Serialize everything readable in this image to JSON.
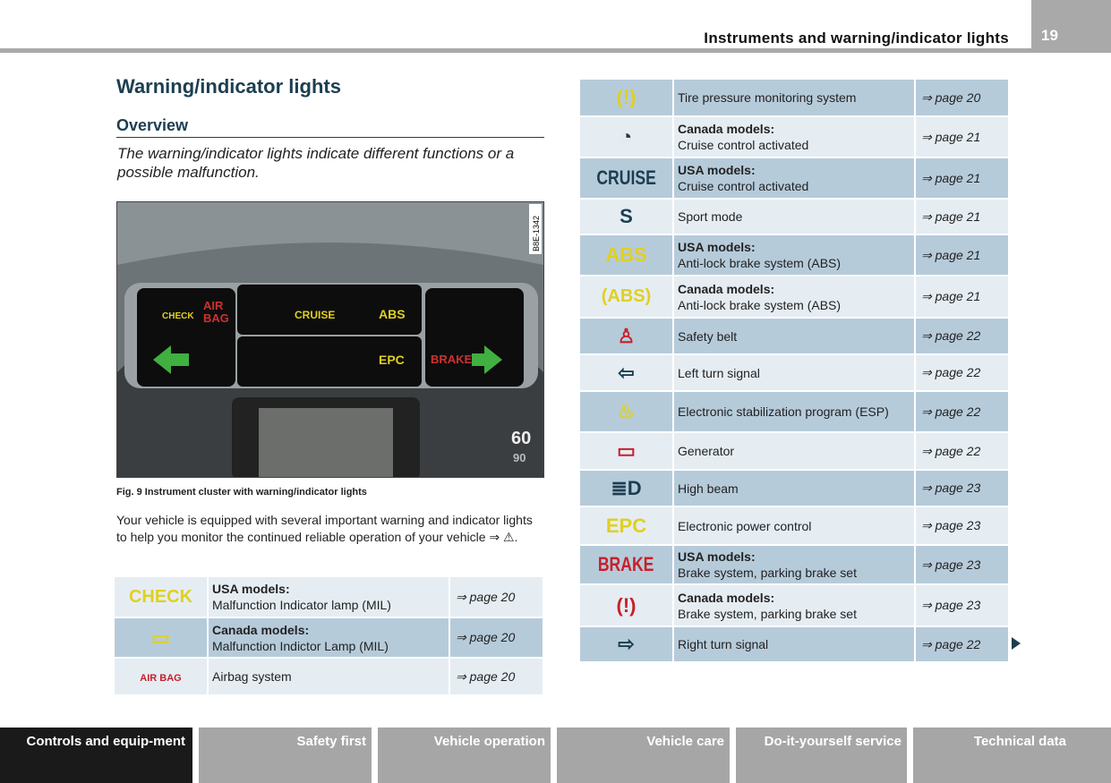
{
  "header": {
    "section_title": "Instruments and warning/indicator lights",
    "page_number": "19"
  },
  "title": "Warning/indicator lights",
  "subtitle": "Overview",
  "intro": "The warning/indicator lights indicate different functions or a possible malfunction.",
  "figure": {
    "code": "B8E-1342",
    "caption": "Fig. 9  Instrument cluster with warning/indicator lights",
    "labels": {
      "air": "AIR",
      "bag": "BAG",
      "check": "CHECK",
      "cruise": "CRUISE",
      "abs": "ABS",
      "epc": "EPC",
      "brake": "BRAKE",
      "s60": "60",
      "s90": "90"
    }
  },
  "body_text": "Your vehicle is equipped with several important warning and indicator lights to help you monitor the continued reliable operation of your vehicle ⇒ ⚠.",
  "left_table": [
    {
      "icon": "check-engine-icon",
      "glyph": "CHECK",
      "color": "#e0d020",
      "head": "USA models:",
      "text": "Malfunction Indicator lamp (MIL)",
      "page": "⇒ page 20"
    },
    {
      "icon": "engine-icon",
      "glyph": "▭",
      "color": "#e0d020",
      "head": "Canada models:",
      "text": "Malfunction Indictor Lamp (MIL)",
      "page": "⇒ page 20"
    },
    {
      "icon": "airbag-icon",
      "glyph": "AIR BAG",
      "color": "#c8202a",
      "head": "",
      "text": "Airbag system",
      "page": "⇒ page 20"
    }
  ],
  "right_table": [
    {
      "icon": "tire-pressure-icon",
      "glyph": "(!)",
      "color": "#e0d020",
      "head": "",
      "text": "Tire pressure monitoring system",
      "page": "⇒ page 20"
    },
    {
      "icon": "cruise-gauge-icon",
      "glyph": "◔",
      "color": "#333",
      "head": "Canada models:",
      "text": "Cruise control activated",
      "page": "⇒ page 21"
    },
    {
      "icon": "cruise-icon",
      "glyph": "CRUISE",
      "color": "#1c3e50",
      "head": "USA models:",
      "text": "Cruise control activated",
      "page": "⇒ page 21"
    },
    {
      "icon": "sport-mode-icon",
      "glyph": "S",
      "color": "#1c3e50",
      "head": "",
      "text": "Sport mode",
      "page": "⇒ page 21"
    },
    {
      "icon": "abs-icon",
      "glyph": "ABS",
      "color": "#e0d020",
      "head": "USA models:",
      "text": "Anti-lock brake system (ABS)",
      "page": "⇒ page 21"
    },
    {
      "icon": "abs-circle-icon",
      "glyph": "(ABS)",
      "color": "#e0d020",
      "head": "Canada models:",
      "text": "Anti-lock brake system (ABS)",
      "page": "⇒ page 21"
    },
    {
      "icon": "safety-belt-icon",
      "glyph": "♙",
      "color": "#c8202a",
      "head": "",
      "text": "Safety belt",
      "page": "⇒ page 22"
    },
    {
      "icon": "left-turn-icon",
      "glyph": "⇦",
      "color": "#1c3e50",
      "head": "",
      "text": "Left turn signal",
      "page": "⇒ page 22"
    },
    {
      "icon": "esp-icon",
      "glyph": "♨",
      "color": "#e0d020",
      "head": "",
      "text": "Electronic stabilization program (ESP)",
      "page": "⇒ page 22"
    },
    {
      "icon": "battery-icon",
      "glyph": "▭",
      "color": "#c8202a",
      "head": "",
      "text": "Generator",
      "page": "⇒ page 22"
    },
    {
      "icon": "high-beam-icon",
      "glyph": "≣D",
      "color": "#1c3e50",
      "head": "",
      "text": "High beam",
      "page": "⇒ page 23"
    },
    {
      "icon": "epc-icon",
      "glyph": "EPC",
      "color": "#e0d020",
      "head": "",
      "text": "Electronic power control",
      "page": "⇒ page 23"
    },
    {
      "icon": "brake-text-icon",
      "glyph": "BRAKE",
      "color": "#c8202a",
      "head": "USA models:",
      "text": "Brake system, parking brake set",
      "page": "⇒ page 23"
    },
    {
      "icon": "brake-circle-icon",
      "glyph": "(!)",
      "color": "#c8202a",
      "head": "Canada models:",
      "text": "Brake system, parking brake set",
      "page": "⇒ page 23"
    },
    {
      "icon": "right-turn-icon",
      "glyph": "⇨",
      "color": "#1c3e50",
      "head": "",
      "text": "Right turn signal",
      "page": "⇒ page 22"
    }
  ],
  "footer_tabs": [
    "Controls and equip-ment",
    "Safety first",
    "Vehicle operation",
    "Vehicle care",
    "Do-it-yourself service",
    "Technical data"
  ]
}
